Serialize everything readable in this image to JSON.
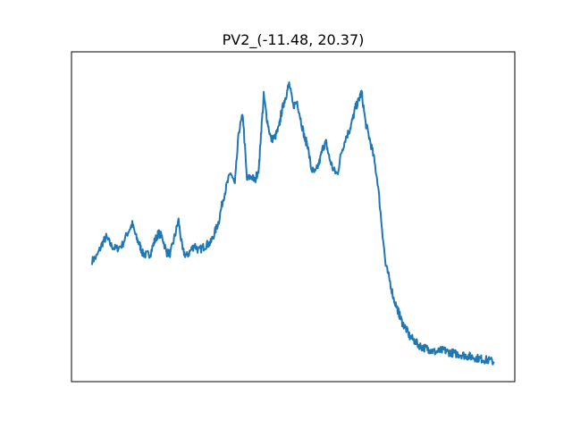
{
  "chart_data": {
    "type": "line",
    "title": "PV2_(-11.48, 20.37)",
    "xlabel": "",
    "ylabel": "",
    "ticks_visible": false,
    "grid": false,
    "xlim": [
      0,
      1
    ],
    "ylim": [
      0,
      1
    ],
    "series": [
      {
        "color": "#1f77b4",
        "x": [
          0.0,
          0.012,
          0.025,
          0.035,
          0.048,
          0.06,
          0.075,
          0.09,
          0.1,
          0.11,
          0.118,
          0.126,
          0.135,
          0.145,
          0.155,
          0.165,
          0.175,
          0.185,
          0.195,
          0.205,
          0.215,
          0.225,
          0.235,
          0.245,
          0.255,
          0.265,
          0.275,
          0.285,
          0.295,
          0.305,
          0.315,
          0.325,
          0.335,
          0.345,
          0.355,
          0.365,
          0.375,
          0.385,
          0.395,
          0.405,
          0.415,
          0.42,
          0.427,
          0.435,
          0.445,
          0.455,
          0.465,
          0.47,
          0.476,
          0.482,
          0.49,
          0.5,
          0.51,
          0.52,
          0.53,
          0.535,
          0.545,
          0.555,
          0.565,
          0.575,
          0.582,
          0.59,
          0.6,
          0.61,
          0.62,
          0.63,
          0.64,
          0.648,
          0.655,
          0.663,
          0.67,
          0.68,
          0.69,
          0.7,
          0.71,
          0.72,
          0.73,
          0.74,
          0.75,
          0.76,
          0.765,
          0.772,
          0.78,
          0.79,
          0.8,
          0.81,
          0.82,
          0.83,
          0.838,
          0.845,
          0.855,
          0.865,
          0.875,
          0.885,
          0.895,
          0.905,
          0.915,
          0.925,
          0.935,
          0.945,
          0.955,
          0.965,
          0.975,
          0.985,
          1.0
        ],
        "values": [
          0.346,
          0.361,
          0.404,
          0.426,
          0.397,
          0.386,
          0.4,
          0.446,
          0.47,
          0.425,
          0.401,
          0.371,
          0.366,
          0.371,
          0.411,
          0.44,
          0.426,
          0.374,
          0.371,
          0.426,
          0.483,
          0.381,
          0.361,
          0.381,
          0.4,
          0.38,
          0.391,
          0.401,
          0.407,
          0.442,
          0.48,
          0.551,
          0.603,
          0.646,
          0.603,
          0.786,
          0.84,
          0.62,
          0.634,
          0.617,
          0.663,
          0.777,
          0.906,
          0.826,
          0.757,
          0.766,
          0.799,
          0.843,
          0.877,
          0.906,
          0.946,
          0.871,
          0.886,
          0.817,
          0.754,
          0.746,
          0.657,
          0.643,
          0.68,
          0.734,
          0.746,
          0.694,
          0.654,
          0.64,
          0.714,
          0.76,
          0.789,
          0.826,
          0.866,
          0.889,
          0.92,
          0.814,
          0.76,
          0.7,
          0.614,
          0.471,
          0.331,
          0.28,
          0.217,
          0.18,
          0.16,
          0.134,
          0.117,
          0.089,
          0.077,
          0.063,
          0.054,
          0.049,
          0.046,
          0.04,
          0.037,
          0.04,
          0.043,
          0.037,
          0.034,
          0.031,
          0.029,
          0.026,
          0.023,
          0.02,
          0.017,
          0.014,
          0.011,
          0.009,
          0.003
        ]
      }
    ]
  }
}
